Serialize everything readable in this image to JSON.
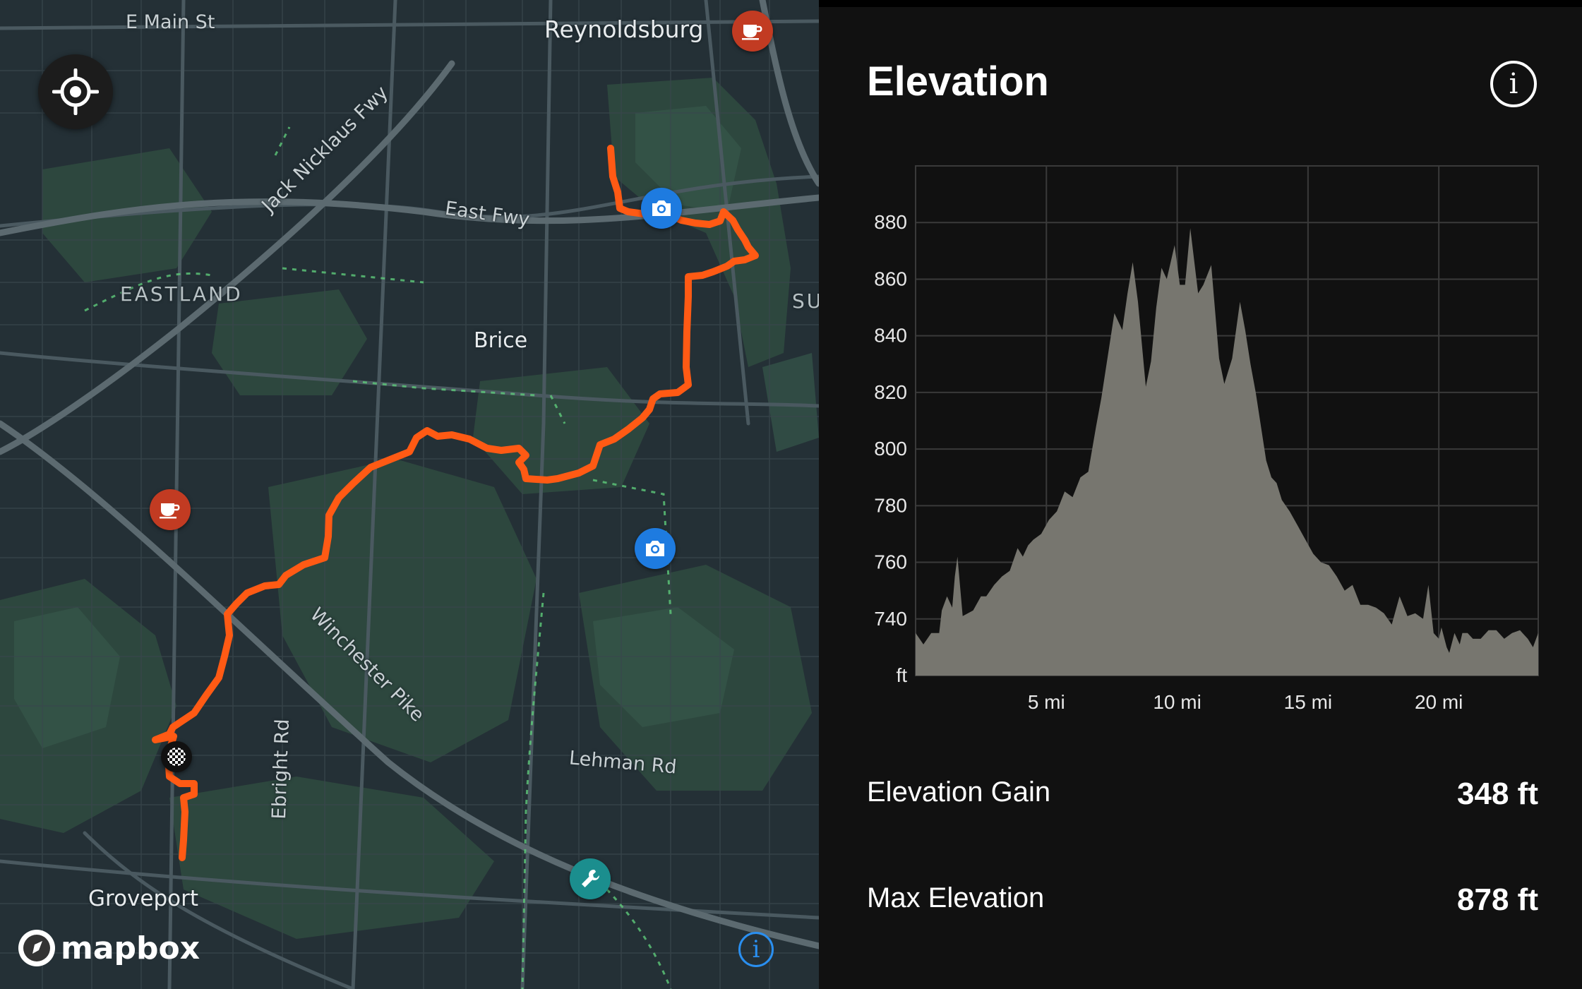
{
  "map": {
    "places": {
      "reynoldsburg": "Reynoldsburg",
      "brice": "Brice",
      "groveport": "Groveport",
      "eastland": "EASTLAND",
      "su": "SU"
    },
    "roads": {
      "e_main_st": "E Main St",
      "east_fwy": "East Fwy",
      "jack_nicklaus_fwy": "Jack Nicklaus Fwy",
      "winchester_pike": "Winchester Pike",
      "ebright_rd": "Ebright Rd",
      "lehman_rd": "Lehman Rd"
    },
    "logo_text": "mapbox",
    "info_glyph": "i",
    "route_color": "#ff5a14",
    "icons": [
      "locate-icon",
      "coffee-icon",
      "camera-icon",
      "wrench-icon",
      "finish-flag-icon"
    ]
  },
  "panel": {
    "title": "Elevation",
    "info_glyph": "i",
    "stats": [
      {
        "label": "Elevation Gain",
        "value": "348 ft"
      },
      {
        "label": "Max Elevation",
        "value": "878 ft"
      }
    ]
  },
  "chart_data": {
    "type": "area",
    "ylabel": "ft",
    "xlim": [
      0,
      23.8
    ],
    "ylim": [
      720,
      900
    ],
    "yticks": [
      740,
      760,
      780,
      800,
      820,
      840,
      860,
      880
    ],
    "xticks": [
      5,
      10,
      15,
      20
    ],
    "xtick_labels": [
      "5 mi",
      "10 mi",
      "15 mi",
      "20 mi"
    ],
    "grid": true,
    "fill_color": "#77766f",
    "series": [
      {
        "x": [
          0,
          0.3,
          0.6,
          0.9,
          1.0,
          1.2,
          1.4,
          1.5,
          1.6,
          1.8,
          2.0,
          2.2,
          2.5,
          2.7,
          3.0,
          3.3,
          3.6,
          3.9,
          4.1,
          4.3,
          4.5,
          4.8,
          5.1,
          5.4,
          5.7,
          6.0,
          6.3,
          6.6,
          6.9,
          7.1,
          7.3,
          7.6,
          7.9,
          8.1,
          8.3,
          8.5,
          8.8,
          9.0,
          9.2,
          9.4,
          9.6,
          9.9,
          10.1,
          10.3,
          10.5,
          10.8,
          11.0,
          11.3,
          11.6,
          11.8,
          12.1,
          12.4,
          12.6,
          12.8,
          13.0,
          13.2,
          13.4,
          13.6,
          13.8,
          14.0,
          14.3,
          14.6,
          14.9,
          15.2,
          15.5,
          15.8,
          16.1,
          16.4,
          16.7,
          17.0,
          17.3,
          17.6,
          17.9,
          18.2,
          18.5,
          18.8,
          19.1,
          19.4,
          19.6,
          19.8,
          20.0,
          20.1,
          20.3,
          20.4,
          20.6,
          20.8,
          20.9,
          21.1,
          21.3,
          21.6,
          21.9,
          22.2,
          22.5,
          22.8,
          23.1,
          23.4,
          23.6,
          23.8
        ],
        "y": [
          735,
          731,
          735,
          735,
          743,
          748,
          744,
          755,
          762,
          741,
          742,
          743,
          748,
          748,
          752,
          755,
          757,
          765,
          762,
          766,
          768,
          770,
          775,
          778,
          785,
          783,
          790,
          792,
          808,
          818,
          830,
          848,
          842,
          855,
          866,
          852,
          822,
          831,
          850,
          864,
          860,
          872,
          858,
          858,
          878,
          855,
          858,
          865,
          832,
          823,
          832,
          852,
          842,
          830,
          820,
          808,
          796,
          790,
          788,
          782,
          778,
          773,
          768,
          763,
          760,
          759,
          755,
          750,
          752,
          745,
          745,
          744,
          742,
          738,
          748,
          741,
          742,
          740,
          752,
          735,
          733,
          737,
          730,
          728,
          735,
          731,
          735,
          735,
          733,
          733,
          736,
          736,
          733,
          735,
          736,
          733,
          730,
          735
        ]
      }
    ]
  }
}
